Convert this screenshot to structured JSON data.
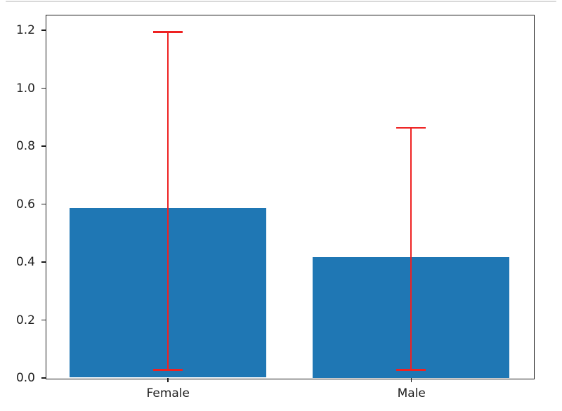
{
  "page": {
    "background": "#ffffff",
    "top_border_color": "#d9d9d9"
  },
  "chart_data": {
    "type": "bar",
    "title": "",
    "xlabel": "",
    "ylabel": "",
    "categories": [
      "Female",
      "Male"
    ],
    "values": [
      0.585,
      0.417
    ],
    "error_bars": {
      "low": [
        0.027,
        0.027
      ],
      "high": [
        1.193,
        0.862
      ],
      "color": "#ee2222"
    },
    "bar_color": "#1f77b4",
    "ylim": [
      0,
      1.251
    ],
    "yticks": [
      0.0,
      0.2,
      0.4,
      0.6,
      0.8,
      1.0,
      1.2
    ],
    "yticklabels": [
      "0.0",
      "0.2",
      "0.4",
      "0.6",
      "0.8",
      "1.0",
      "1.2"
    ],
    "grid": false,
    "legend": null,
    "spine_color": "#1b1b1b",
    "tick_label_color": "#1f1f1f"
  }
}
